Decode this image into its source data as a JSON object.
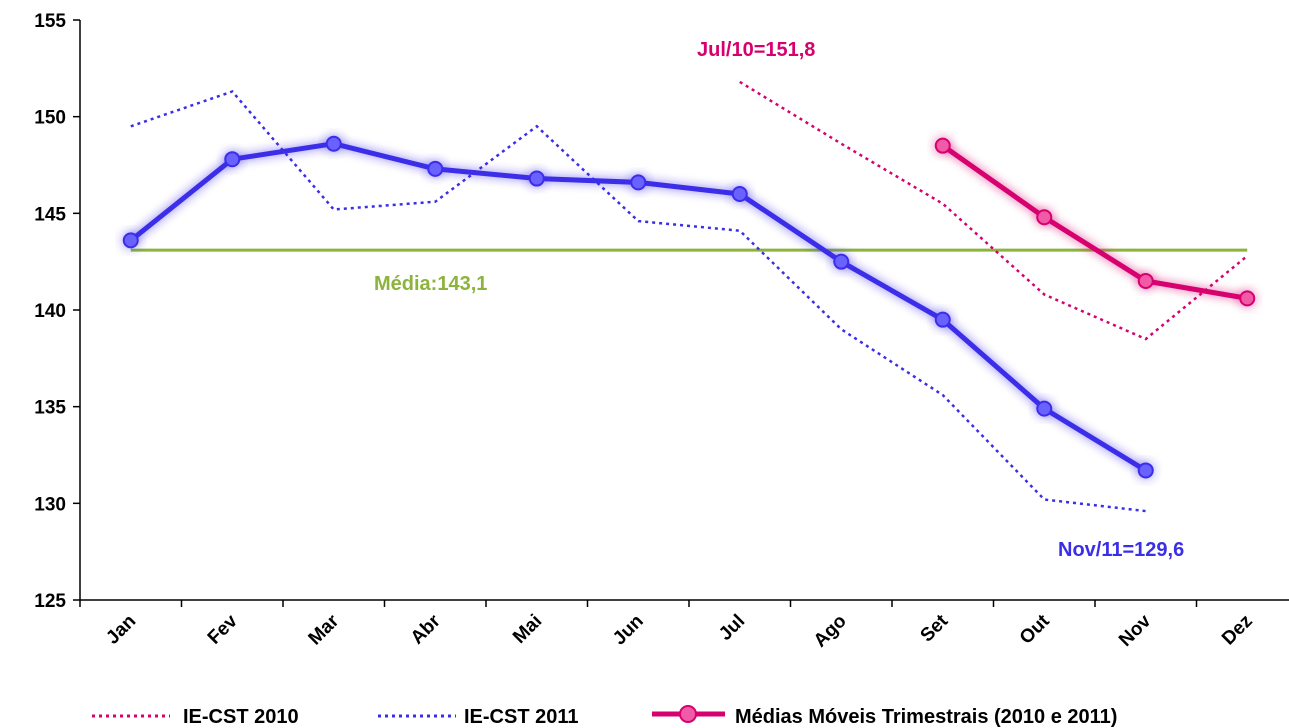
{
  "chart_data": {
    "type": "line",
    "categories": [
      "Jan",
      "Fev",
      "Mar",
      "Abr",
      "Mai",
      "Jun",
      "Jul",
      "Ago",
      "Set",
      "Out",
      "Nov",
      "Dez"
    ],
    "ylim": [
      125,
      155
    ],
    "yticks": [
      "125",
      "130",
      "135",
      "140",
      "145",
      "150",
      "155"
    ],
    "grid": false,
    "series": [
      {
        "name": "IE-CST  2010",
        "style": "dotted",
        "color": "#d6006f",
        "values": [
          null,
          null,
          null,
          null,
          null,
          null,
          151.8,
          148.6,
          145.5,
          140.8,
          138.5,
          142.8
        ]
      },
      {
        "name": "IE-CST  2011",
        "style": "dotted",
        "color": "#3b2ee8",
        "values": [
          149.5,
          151.3,
          145.2,
          145.6,
          149.5,
          144.6,
          144.1,
          139.0,
          135.6,
          130.2,
          129.6,
          null
        ]
      },
      {
        "name": "",
        "style": "solid-marker",
        "color": "#3b2ee8",
        "values": [
          143.6,
          147.8,
          148.6,
          147.3,
          146.8,
          146.6,
          146.0,
          142.5,
          139.5,
          134.9,
          131.7,
          null
        ]
      },
      {
        "name": "Médias Móveis Trimestrais (2010 e 2011)",
        "style": "solid-marker",
        "color": "#d6006f",
        "values": [
          null,
          null,
          null,
          null,
          null,
          null,
          null,
          null,
          148.5,
          144.8,
          141.5,
          140.6
        ]
      }
    ],
    "reference_line": {
      "value": 143.1,
      "color": "#8cb43c",
      "label": "Média:143,1"
    },
    "annotations": [
      {
        "text": "Jul/10=151,8",
        "color": "#d6006f"
      },
      {
        "text": "Nov/11=129,6",
        "color": "#3b2ee8"
      }
    ],
    "legend_position": "bottom"
  }
}
